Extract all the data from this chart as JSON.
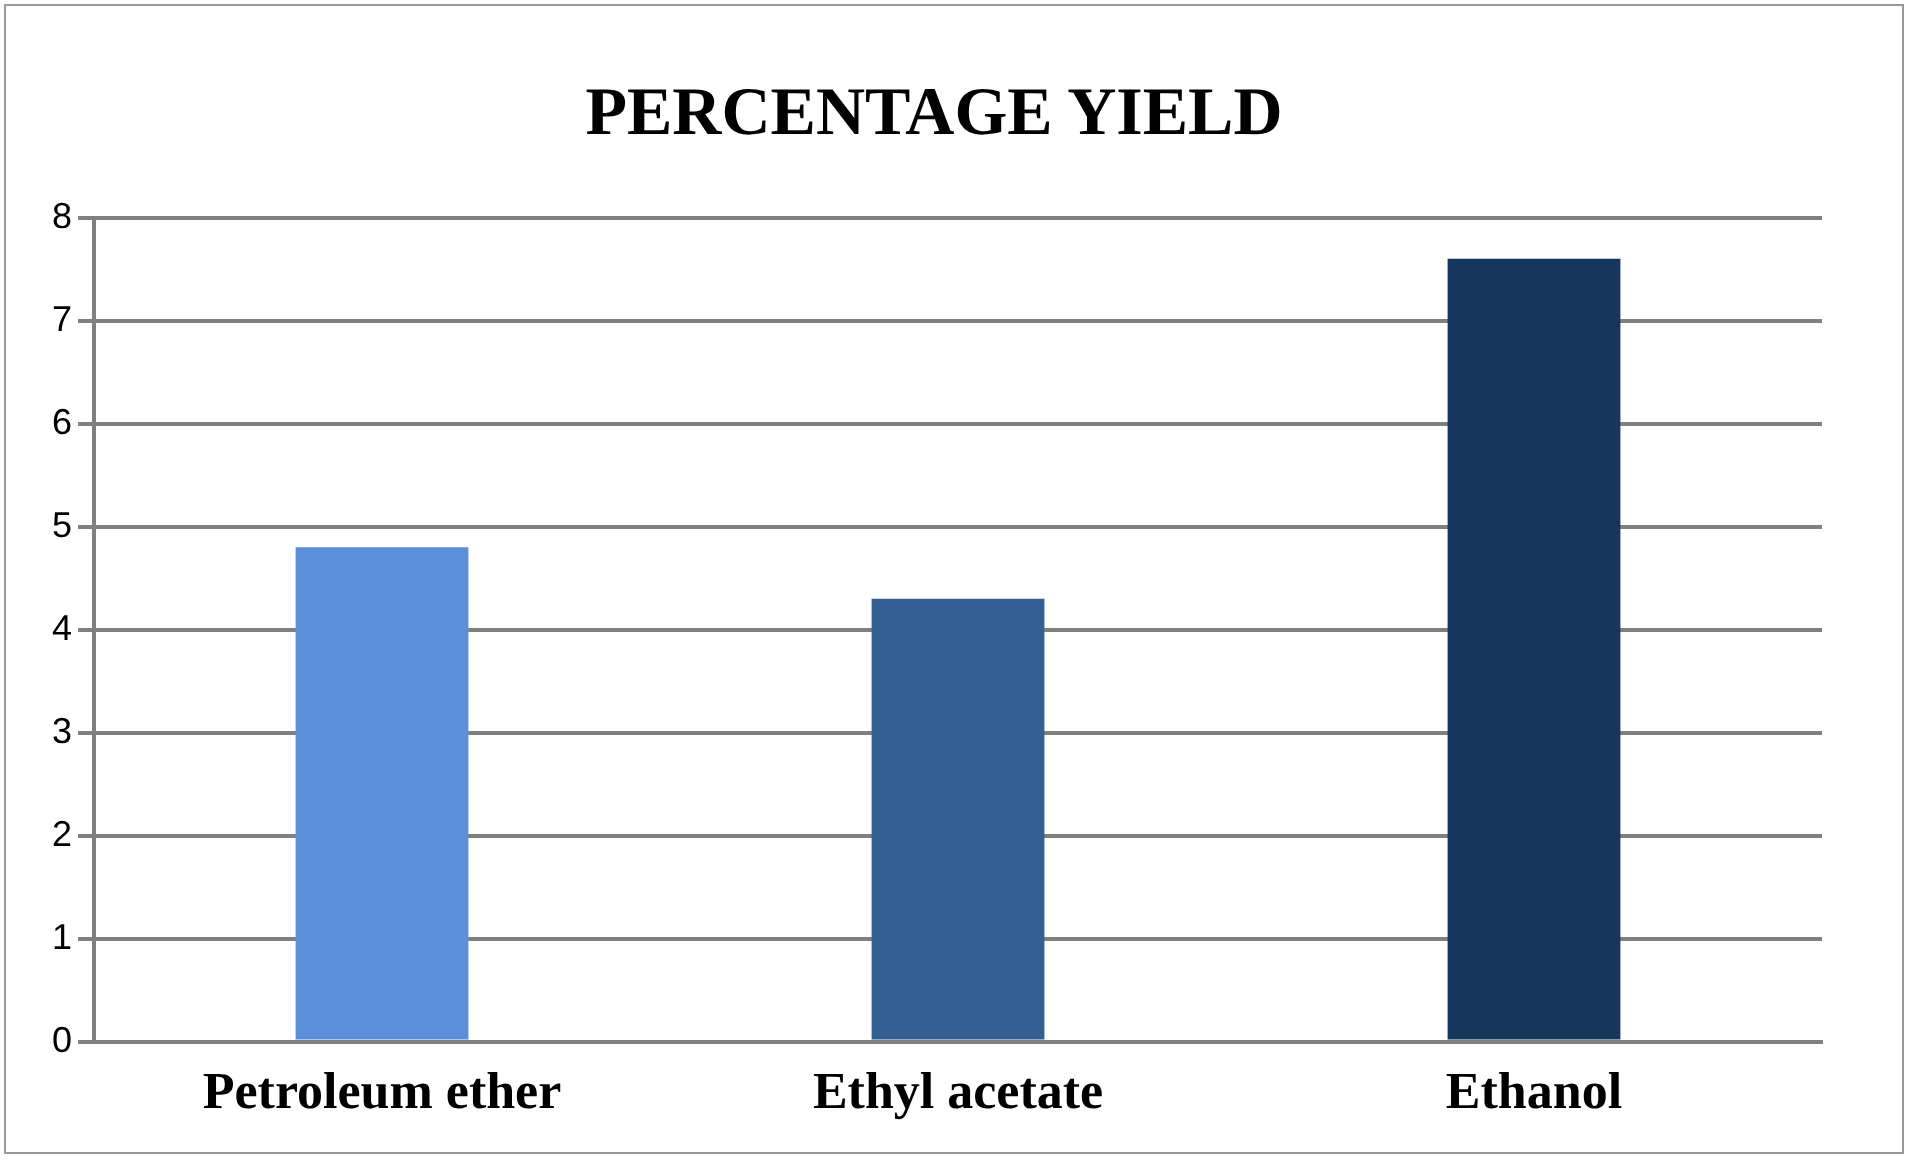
{
  "chart_data": {
    "type": "bar",
    "title": "PERCENTAGE YIELD",
    "categories": [
      "Petroleum ether",
      "Ethyl acetate",
      "Ethanol"
    ],
    "values": [
      4.8,
      4.3,
      7.6
    ],
    "colors": [
      "#5b8fd9",
      "#345f93",
      "#17365d"
    ],
    "ylim": [
      0,
      8
    ],
    "yticks": [
      0,
      1,
      2,
      3,
      4,
      5,
      6,
      7,
      8
    ],
    "grid": "y",
    "legend": false
  }
}
